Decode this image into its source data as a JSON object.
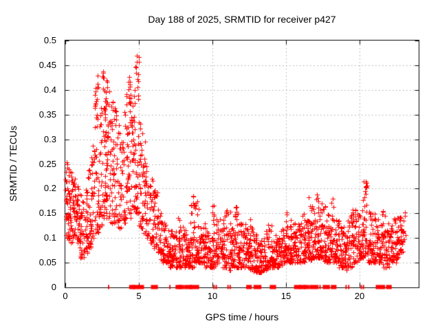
{
  "chart_data": {
    "type": "scatter",
    "title": "Day 188 of 2025, SRMTID for receiver p427",
    "xlabel": "GPS time / hours",
    "ylabel": "SRMTID / TECUs",
    "xlim": [
      0,
      24
    ],
    "ylim": [
      0,
      0.5
    ],
    "xticks": [
      0,
      5,
      10,
      15,
      20
    ],
    "xticklabels": [
      "0",
      "5",
      "10",
      "15",
      "20"
    ],
    "yticks": [
      0,
      0.05,
      0.1,
      0.15,
      0.2,
      0.25,
      0.3,
      0.35,
      0.4,
      0.45,
      0.5
    ],
    "yticklabels": [
      "0",
      "0.05",
      "0.1",
      "0.15",
      "0.2",
      "0.25",
      "0.3",
      "0.35",
      "0.4",
      "0.45",
      "0.5"
    ],
    "grid": true,
    "legend": "none",
    "marker": "plus",
    "marker_size_px": 7,
    "marker_color": "#ff0000",
    "grid_color": "#a8a8a8",
    "axis_color": "#000000",
    "background_color": "#ffffff",
    "seed": 188,
    "series": [
      {
        "name": "SRMTID",
        "note": "Dense scatter (~2500 samples) described as distribution bins [hourStart, hourEnd, count, yMin, yMax, lowBiasExponent]; y = yMin + (yMax-yMin)*u^k",
        "distribution_bins": [
          [
            0.0,
            0.25,
            35,
            0.1,
            0.26,
            1.5
          ],
          [
            0.25,
            0.5,
            35,
            0.09,
            0.24,
            1.5
          ],
          [
            0.5,
            0.75,
            30,
            0.1,
            0.22,
            1.5
          ],
          [
            0.75,
            1.0,
            30,
            0.09,
            0.21,
            1.5
          ],
          [
            1.0,
            1.25,
            28,
            0.06,
            0.19,
            1.4
          ],
          [
            1.25,
            1.5,
            28,
            0.07,
            0.2,
            1.4
          ],
          [
            1.5,
            1.75,
            30,
            0.08,
            0.24,
            1.5
          ],
          [
            1.75,
            2.0,
            30,
            0.1,
            0.3,
            1.5
          ],
          [
            2.0,
            2.25,
            32,
            0.11,
            0.43,
            1.8
          ],
          [
            2.25,
            2.5,
            32,
            0.12,
            0.38,
            1.6
          ],
          [
            2.5,
            2.75,
            32,
            0.14,
            0.44,
            1.6
          ],
          [
            2.75,
            3.0,
            32,
            0.14,
            0.4,
            1.6
          ],
          [
            3.0,
            3.25,
            28,
            0.13,
            0.38,
            1.6
          ],
          [
            3.25,
            3.5,
            28,
            0.13,
            0.36,
            1.6
          ],
          [
            3.5,
            3.75,
            25,
            0.12,
            0.33,
            1.6
          ],
          [
            3.75,
            4.0,
            25,
            0.12,
            0.3,
            1.6
          ],
          [
            4.0,
            4.25,
            30,
            0.13,
            0.4,
            1.7
          ],
          [
            4.25,
            4.5,
            30,
            0.14,
            0.43,
            1.7
          ],
          [
            4.5,
            4.75,
            30,
            0.15,
            0.4,
            1.6
          ],
          [
            4.75,
            5.0,
            32,
            0.15,
            0.47,
            1.7
          ],
          [
            5.0,
            5.25,
            28,
            0.12,
            0.36,
            1.7
          ],
          [
            5.25,
            5.5,
            26,
            0.11,
            0.3,
            1.7
          ],
          [
            5.5,
            5.75,
            24,
            0.1,
            0.25,
            1.6
          ],
          [
            5.75,
            6.0,
            24,
            0.09,
            0.22,
            1.6
          ],
          [
            6.0,
            6.25,
            24,
            0.08,
            0.2,
            1.7
          ],
          [
            6.25,
            6.5,
            24,
            0.07,
            0.16,
            1.6
          ],
          [
            6.5,
            6.75,
            24,
            0.05,
            0.14,
            1.5
          ],
          [
            6.75,
            7.0,
            24,
            0.05,
            0.13,
            1.5
          ],
          [
            7.0,
            7.25,
            26,
            0.04,
            0.12,
            1.5
          ],
          [
            7.25,
            7.5,
            26,
            0.04,
            0.11,
            1.5
          ],
          [
            7.5,
            7.75,
            26,
            0.04,
            0.16,
            1.9
          ],
          [
            7.75,
            8.0,
            26,
            0.04,
            0.14,
            1.7
          ],
          [
            8.0,
            8.25,
            28,
            0.04,
            0.12,
            1.5
          ],
          [
            8.25,
            8.5,
            28,
            0.04,
            0.11,
            1.5
          ],
          [
            8.5,
            8.75,
            28,
            0.04,
            0.19,
            2.2
          ],
          [
            8.75,
            9.0,
            28,
            0.05,
            0.18,
            2.0
          ],
          [
            9.0,
            9.25,
            26,
            0.05,
            0.16,
            1.9
          ],
          [
            9.25,
            9.5,
            26,
            0.05,
            0.13,
            1.6
          ],
          [
            9.5,
            9.75,
            26,
            0.04,
            0.12,
            1.5
          ],
          [
            9.75,
            10.0,
            26,
            0.04,
            0.11,
            1.5
          ],
          [
            10.0,
            10.25,
            28,
            0.04,
            0.17,
            1.8
          ],
          [
            10.25,
            10.5,
            28,
            0.05,
            0.14,
            1.6
          ],
          [
            10.5,
            10.75,
            26,
            0.04,
            0.12,
            1.5
          ],
          [
            10.75,
            11.0,
            26,
            0.04,
            0.16,
            1.7
          ],
          [
            11.0,
            11.25,
            26,
            0.035,
            0.16,
            1.7
          ],
          [
            11.25,
            11.5,
            26,
            0.04,
            0.13,
            1.6
          ],
          [
            11.5,
            11.75,
            28,
            0.04,
            0.17,
            1.9
          ],
          [
            11.75,
            12.0,
            28,
            0.04,
            0.13,
            1.6
          ],
          [
            12.0,
            12.25,
            28,
            0.04,
            0.13,
            1.6
          ],
          [
            12.25,
            12.5,
            28,
            0.04,
            0.12,
            1.5
          ],
          [
            12.5,
            12.75,
            28,
            0.035,
            0.145,
            1.7
          ],
          [
            12.75,
            13.0,
            28,
            0.03,
            0.11,
            1.5
          ],
          [
            13.0,
            13.25,
            26,
            0.03,
            0.09,
            1.4
          ],
          [
            13.25,
            13.5,
            26,
            0.03,
            0.1,
            1.4
          ],
          [
            13.5,
            13.75,
            26,
            0.035,
            0.12,
            1.6
          ],
          [
            13.75,
            14.0,
            26,
            0.04,
            0.13,
            1.6
          ],
          [
            14.0,
            14.25,
            26,
            0.04,
            0.11,
            1.5
          ],
          [
            14.25,
            14.5,
            26,
            0.04,
            0.11,
            1.5
          ],
          [
            14.5,
            14.75,
            26,
            0.045,
            0.12,
            1.5
          ],
          [
            14.75,
            15.0,
            26,
            0.05,
            0.12,
            1.5
          ],
          [
            15.0,
            15.25,
            28,
            0.05,
            0.155,
            1.7
          ],
          [
            15.25,
            15.5,
            28,
            0.05,
            0.14,
            1.6
          ],
          [
            15.5,
            15.75,
            26,
            0.05,
            0.13,
            1.5
          ],
          [
            15.75,
            16.0,
            26,
            0.05,
            0.13,
            1.5
          ],
          [
            16.0,
            16.25,
            28,
            0.05,
            0.15,
            1.6
          ],
          [
            16.25,
            16.5,
            28,
            0.06,
            0.14,
            1.5
          ],
          [
            16.5,
            16.75,
            30,
            0.055,
            0.185,
            1.7
          ],
          [
            16.75,
            17.0,
            30,
            0.06,
            0.17,
            1.6
          ],
          [
            17.0,
            17.25,
            30,
            0.06,
            0.19,
            1.7
          ],
          [
            17.25,
            17.5,
            30,
            0.06,
            0.17,
            1.6
          ],
          [
            17.5,
            17.75,
            28,
            0.05,
            0.165,
            1.6
          ],
          [
            17.75,
            18.0,
            28,
            0.05,
            0.15,
            1.6
          ],
          [
            18.0,
            18.25,
            28,
            0.05,
            0.19,
            1.8
          ],
          [
            18.25,
            18.5,
            28,
            0.05,
            0.15,
            1.6
          ],
          [
            18.5,
            18.75,
            26,
            0.04,
            0.14,
            1.5
          ],
          [
            18.75,
            19.0,
            26,
            0.04,
            0.13,
            1.5
          ],
          [
            19.0,
            19.25,
            26,
            0.035,
            0.14,
            1.6
          ],
          [
            19.25,
            19.5,
            26,
            0.04,
            0.15,
            1.6
          ],
          [
            19.5,
            19.75,
            26,
            0.05,
            0.16,
            1.6
          ],
          [
            19.75,
            20.0,
            26,
            0.05,
            0.15,
            1.6
          ],
          [
            20.0,
            20.25,
            28,
            0.06,
            0.18,
            1.6
          ],
          [
            20.25,
            20.5,
            28,
            0.06,
            0.215,
            1.7
          ],
          [
            20.5,
            20.75,
            26,
            0.05,
            0.16,
            1.6
          ],
          [
            20.75,
            21.0,
            26,
            0.05,
            0.15,
            1.5
          ],
          [
            21.0,
            21.25,
            30,
            0.05,
            0.14,
            1.4
          ],
          [
            21.25,
            21.5,
            30,
            0.05,
            0.13,
            1.4
          ],
          [
            21.5,
            21.75,
            26,
            0.04,
            0.16,
            1.6
          ],
          [
            21.75,
            22.0,
            26,
            0.04,
            0.14,
            1.5
          ],
          [
            22.0,
            22.25,
            24,
            0.05,
            0.13,
            1.4
          ],
          [
            22.25,
            22.5,
            24,
            0.05,
            0.14,
            1.4
          ],
          [
            22.5,
            22.75,
            24,
            0.06,
            0.15,
            1.3
          ],
          [
            22.75,
            23.1,
            26,
            0.07,
            0.155,
            1.3
          ],
          [
            2.0,
            2.3,
            8,
            0.33,
            0.43,
            1.0
          ],
          [
            2.55,
            2.9,
            12,
            0.33,
            0.445,
            1.0
          ],
          [
            3.15,
            3.65,
            6,
            0.33,
            0.38,
            1.0
          ],
          [
            4.2,
            4.45,
            7,
            0.36,
            0.43,
            1.0
          ],
          [
            4.8,
            5.0,
            8,
            0.37,
            0.47,
            1.0
          ],
          [
            8.6,
            8.9,
            3,
            0.16,
            0.19,
            1.0
          ],
          [
            11.5,
            11.65,
            4,
            0.14,
            0.17,
            1.0
          ],
          [
            20.3,
            20.45,
            5,
            0.18,
            0.215,
            1.0
          ]
        ]
      }
    ],
    "zero_line_marks": {
      "note": "red filled squares sitting on y=0 axis, hour ranges",
      "square_ranges": [
        [
          4.45,
          4.63
        ],
        [
          4.67,
          4.86
        ],
        [
          5.05,
          5.23
        ],
        [
          5.93,
          6.17
        ],
        [
          7.6,
          7.78
        ],
        [
          7.8,
          7.95
        ],
        [
          8.2,
          8.5
        ],
        [
          8.55,
          8.97
        ],
        [
          12.4,
          12.55
        ],
        [
          12.9,
          13.2
        ],
        [
          14.0,
          14.2
        ],
        [
          15.65,
          15.9
        ],
        [
          16.0,
          16.2
        ],
        [
          16.3,
          16.45
        ],
        [
          16.7,
          17.0
        ],
        [
          17.6,
          17.85
        ],
        [
          18.15,
          18.3
        ],
        [
          21.2,
          21.6
        ],
        [
          21.9,
          22.05
        ]
      ],
      "thin_marks": [
        2.94,
        7.1,
        10.1,
        10.25,
        11.05,
        11.2,
        17.15,
        17.3,
        19.07,
        19.25,
        20.1,
        20.25
      ]
    }
  }
}
